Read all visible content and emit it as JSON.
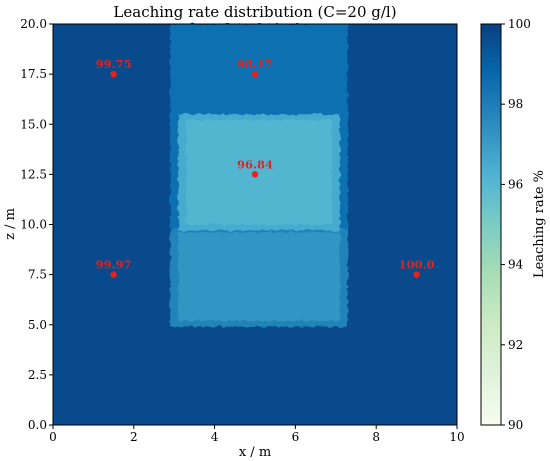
{
  "chart_data": {
    "type": "heatmap",
    "title": "Leaching rate distribution (C=20 g/l)",
    "xlabel": "x / m",
    "ylabel": "z / m",
    "xlim": [
      0,
      10
    ],
    "ylim": [
      0,
      20
    ],
    "xticks": [
      "0",
      "2",
      "4",
      "6",
      "8",
      "10"
    ],
    "yticks": [
      "0.0",
      "2.5",
      "5.0",
      "7.5",
      "10.0",
      "12.5",
      "15.0",
      "17.5",
      "20.0"
    ],
    "colorbar": {
      "label": "Leaching rate %",
      "range": [
        90,
        100
      ],
      "ticks": [
        "90",
        "92",
        "94",
        "96",
        "98",
        "100"
      ],
      "colormap": "GnBu"
    },
    "regions": [
      {
        "x": [
          0,
          10
        ],
        "y": [
          0,
          20
        ],
        "value": 99.7
      },
      {
        "x": [
          2.9,
          7.3
        ],
        "y": [
          4.9,
          20
        ],
        "value": 98.5
      },
      {
        "x": [
          2.9,
          7.3
        ],
        "y": [
          4.9,
          9.8
        ],
        "value": 97.8
      },
      {
        "x": [
          3.1,
          7.1
        ],
        "y": [
          5.2,
          9.6
        ],
        "value": 97.2
      },
      {
        "x": [
          3.1,
          7.1
        ],
        "y": [
          9.7,
          15.5
        ],
        "value": 96.5
      },
      {
        "x": [
          3.3,
          6.9
        ],
        "y": [
          10.0,
          15.2
        ],
        "value": 96.1
      }
    ],
    "points": [
      {
        "x": 1.5,
        "y": 17.5,
        "label": "99.75"
      },
      {
        "x": 5.0,
        "y": 17.5,
        "label": "98.17"
      },
      {
        "x": 5.0,
        "y": 12.5,
        "label": "96.84"
      },
      {
        "x": 1.5,
        "y": 7.5,
        "label": "99.97"
      },
      {
        "x": 9.0,
        "y": 7.5,
        "label": "100.0"
      }
    ],
    "point_color": "#e8211d"
  }
}
